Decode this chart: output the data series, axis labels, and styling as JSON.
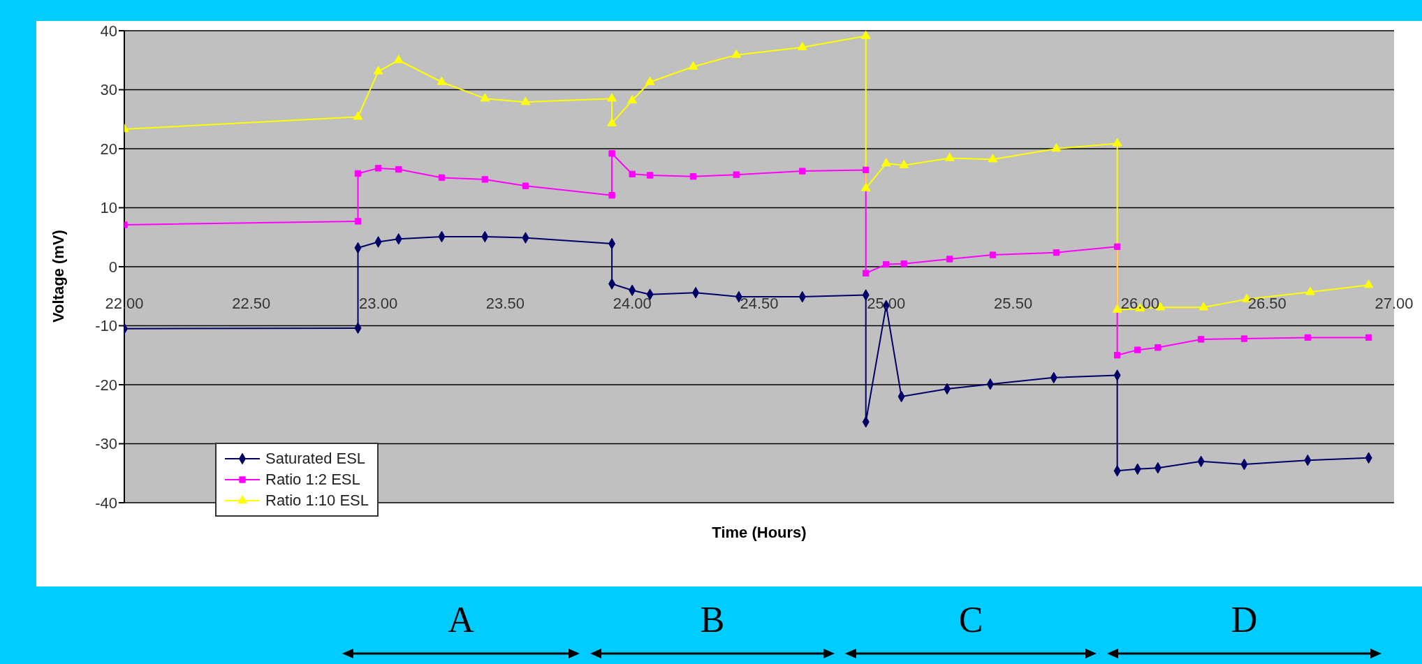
{
  "chart_data": {
    "type": "line",
    "xlabel": "Time (Hours)",
    "ylabel": "Voltage (mV)",
    "xlim": [
      22,
      27
    ],
    "xticks": [
      {
        "value": 22,
        "label": "22.00"
      },
      {
        "value": 22.5,
        "label": "22.50"
      },
      {
        "value": 23,
        "label": "23.00"
      },
      {
        "value": 23.5,
        "label": "23.50"
      },
      {
        "value": 24,
        "label": "24.00"
      },
      {
        "value": 24.5,
        "label": "24.50"
      },
      {
        "value": 25,
        "label": "25.00"
      },
      {
        "value": 25.5,
        "label": "25.50"
      },
      {
        "value": 26,
        "label": "26.00"
      },
      {
        "value": 26.5,
        "label": "26.50"
      },
      {
        "value": 27,
        "label": "27.00"
      }
    ],
    "ylim": [
      -40,
      40
    ],
    "yticks": [
      -40,
      -30,
      -20,
      -10,
      0,
      10,
      20,
      30,
      40
    ],
    "grid": "y",
    "legend": "bottom left",
    "line_style": "solid",
    "annotations": [
      "A",
      "B",
      "C",
      "D"
    ],
    "series": [
      {
        "name": "Saturated ESL",
        "color": "#000066",
        "marker": "diamond",
        "x": [
          22,
          22.92,
          22.92,
          23.0,
          23.08,
          23.25,
          23.42,
          23.58,
          23.92,
          23.92,
          24.0,
          24.07,
          24.25,
          24.42,
          24.67,
          24.92,
          24.92,
          25.0,
          25.06,
          25.24,
          25.41,
          25.66,
          25.91,
          25.91,
          25.99,
          26.07,
          26.24,
          26.41,
          26.66,
          26.9
        ],
        "values": [
          -10.5,
          -10.4,
          3.2,
          4.2,
          4.7,
          5.1,
          5.1,
          4.9,
          3.9,
          -2.9,
          -4.0,
          -4.7,
          -4.4,
          -5.1,
          -5.1,
          -4.8,
          -26.3,
          -6.6,
          -22.0,
          -20.7,
          -19.9,
          -18.8,
          -18.4,
          -34.6,
          -34.3,
          -34.1,
          -33.0,
          -33.5,
          -32.8,
          -32.4
        ]
      },
      {
        "name": "Ratio 1:2 ESL",
        "color": "#ff00ff",
        "marker": "square",
        "x": [
          22,
          22.92,
          22.92,
          23.0,
          23.08,
          23.25,
          23.42,
          23.58,
          23.92,
          23.92,
          24.0,
          24.07,
          24.24,
          24.41,
          24.67,
          24.92,
          24.92,
          25.0,
          25.07,
          25.25,
          25.42,
          25.67,
          25.91,
          25.91,
          25.99,
          26.07,
          26.24,
          26.41,
          26.66,
          26.9
        ],
        "values": [
          7.1,
          7.7,
          15.8,
          16.7,
          16.5,
          15.1,
          14.8,
          13.7,
          12.1,
          19.2,
          15.7,
          15.5,
          15.3,
          15.6,
          16.2,
          16.4,
          -1.1,
          0.4,
          0.5,
          1.3,
          2.0,
          2.4,
          3.4,
          -15.0,
          -14.1,
          -13.7,
          -12.3,
          -12.2,
          -12.0,
          -12.0
        ]
      },
      {
        "name": "Ratio 1:10 ESL",
        "color": "#ffff00",
        "marker": "triangle",
        "x": [
          22,
          22.92,
          23.0,
          23.08,
          23.25,
          23.42,
          23.58,
          23.92,
          23.92,
          24.0,
          24.07,
          24.24,
          24.41,
          24.67,
          24.92,
          24.92,
          25.0,
          25.07,
          25.25,
          25.42,
          25.67,
          25.91,
          25.91,
          26.0,
          26.08,
          26.25,
          26.42,
          26.67,
          26.9
        ],
        "values": [
          23.3,
          25.4,
          33.1,
          35.0,
          31.3,
          28.5,
          27.9,
          28.5,
          24.3,
          28.2,
          31.3,
          33.9,
          35.9,
          37.2,
          39.1,
          13.3,
          17.5,
          17.2,
          18.4,
          18.2,
          20.0,
          20.9,
          -7.3,
          -7.1,
          -6.9,
          -6.9,
          -5.5,
          -4.3,
          -3.1
        ]
      }
    ]
  }
}
